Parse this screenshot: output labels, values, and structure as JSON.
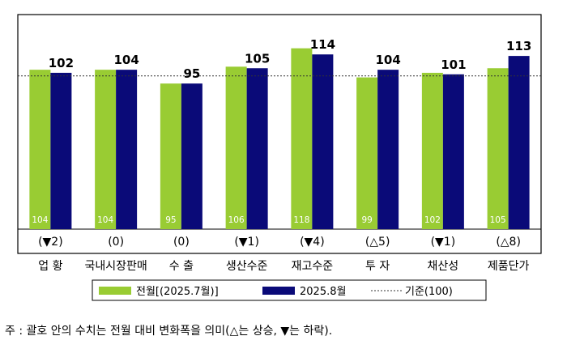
{
  "chart_data": {
    "type": "bar",
    "categories": [
      "업 황",
      "국내시장판매",
      "수 출",
      "생산수준",
      "재고수준",
      "투 자",
      "채산성",
      "제품단가"
    ],
    "series": [
      {
        "name": "전월[(2025.7월)]",
        "values": [
          104,
          104,
          95,
          106,
          118,
          99,
          102,
          105
        ],
        "color": "#99cc33"
      },
      {
        "name": "2025.8월",
        "values": [
          102,
          104,
          95,
          105,
          114,
          104,
          101,
          113
        ],
        "color": "#0a0a78"
      }
    ],
    "changes": [
      "(▼2)",
      "(0)",
      "(0)",
      "(▼1)",
      "(▼4)",
      "(△5)",
      "(▼1)",
      "(△8)"
    ],
    "reference": {
      "name": "기준(100)",
      "value": 100
    },
    "ylim": [
      0,
      140
    ],
    "legend_position": "bottom",
    "grid": false
  },
  "note": "주 : 괄호 안의 수치는 전월 대비 변화폭을 의미(△는 상승, ▼는 하락)."
}
